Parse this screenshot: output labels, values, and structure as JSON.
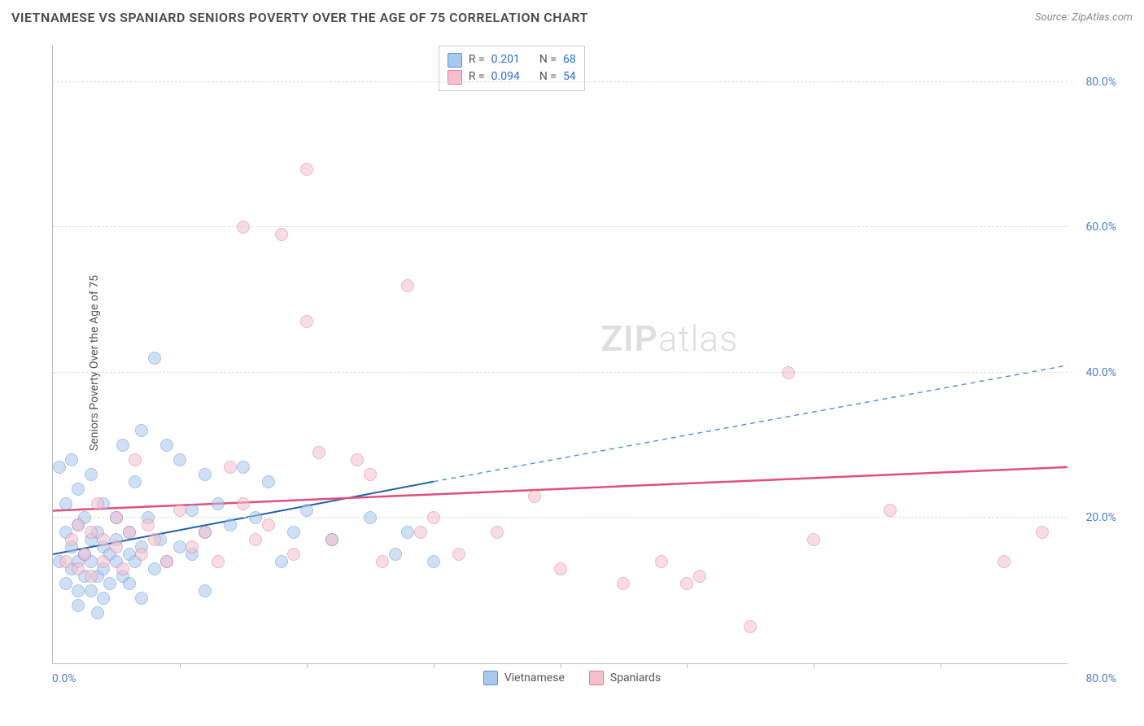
{
  "title": "VIETNAMESE VS SPANIARD SENIORS POVERTY OVER THE AGE OF 75 CORRELATION CHART",
  "source": "Source: ZipAtlas.com",
  "y_axis_label": "Seniors Poverty Over the Age of 75",
  "watermark": {
    "part1": "ZIP",
    "part2": "atlas"
  },
  "chart": {
    "type": "scatter",
    "xlim": [
      0,
      80
    ],
    "ylim": [
      0,
      85
    ],
    "x_tick_step": 10,
    "x_start_label": "0.0%",
    "x_end_label": "80.0%",
    "y_ticks": [
      20,
      40,
      60,
      80
    ],
    "y_tick_labels": [
      "20.0%",
      "40.0%",
      "60.0%",
      "80.0%"
    ],
    "background_color": "#ffffff",
    "grid_color": "#dddddd",
    "axis_color": "#bbbbbb",
    "tick_label_color": "#4a7fd6",
    "marker_radius": 8,
    "marker_opacity": 0.55,
    "series": [
      {
        "name": "Vietnamese",
        "fill": "#a8c8ee",
        "stroke": "#5e94d6",
        "R": "0.201",
        "N": "68",
        "trend": {
          "x1": 0,
          "y1": 15,
          "x2": 30,
          "y2": 25,
          "extend_x2": 80,
          "extend_y2": 41,
          "solid_color": "#1f5fb0",
          "dash_color": "#5e94d6",
          "width": 2
        },
        "points": [
          [
            0.5,
            14
          ],
          [
            0.5,
            27
          ],
          [
            1,
            18
          ],
          [
            1,
            11
          ],
          [
            1,
            22
          ],
          [
            1.5,
            28
          ],
          [
            1.5,
            16
          ],
          [
            1.5,
            13
          ],
          [
            2,
            10
          ],
          [
            2,
            14
          ],
          [
            2,
            19
          ],
          [
            2,
            24
          ],
          [
            2,
            8
          ],
          [
            2.5,
            15
          ],
          [
            2.5,
            12
          ],
          [
            2.5,
            20
          ],
          [
            3,
            26
          ],
          [
            3,
            17
          ],
          [
            3,
            10
          ],
          [
            3,
            14
          ],
          [
            3.5,
            7
          ],
          [
            3.5,
            12
          ],
          [
            3.5,
            18
          ],
          [
            4,
            16
          ],
          [
            4,
            22
          ],
          [
            4,
            13
          ],
          [
            4,
            9
          ],
          [
            4.5,
            15
          ],
          [
            4.5,
            11
          ],
          [
            5,
            20
          ],
          [
            5,
            14
          ],
          [
            5,
            17
          ],
          [
            5.5,
            30
          ],
          [
            5.5,
            12
          ],
          [
            6,
            18
          ],
          [
            6,
            15
          ],
          [
            6,
            11
          ],
          [
            6.5,
            25
          ],
          [
            6.5,
            14
          ],
          [
            7,
            32
          ],
          [
            7,
            16
          ],
          [
            7,
            9
          ],
          [
            7.5,
            20
          ],
          [
            8,
            13
          ],
          [
            8,
            42
          ],
          [
            8.5,
            17
          ],
          [
            9,
            30
          ],
          [
            9,
            14
          ],
          [
            10,
            28
          ],
          [
            10,
            16
          ],
          [
            11,
            21
          ],
          [
            11,
            15
          ],
          [
            12,
            26
          ],
          [
            12,
            18
          ],
          [
            12,
            10
          ],
          [
            13,
            22
          ],
          [
            14,
            19
          ],
          [
            15,
            27
          ],
          [
            16,
            20
          ],
          [
            17,
            25
          ],
          [
            18,
            14
          ],
          [
            19,
            18
          ],
          [
            20,
            21
          ],
          [
            22,
            17
          ],
          [
            25,
            20
          ],
          [
            27,
            15
          ],
          [
            28,
            18
          ],
          [
            30,
            14
          ]
        ]
      },
      {
        "name": "Spaniards",
        "fill": "#f4c0ce",
        "stroke": "#e77a9a",
        "R": "0.094",
        "N": "54",
        "trend": {
          "x1": 0,
          "y1": 21,
          "x2": 80,
          "y2": 27,
          "solid_color": "#e04f7b",
          "width": 2.5
        },
        "points": [
          [
            1,
            14
          ],
          [
            1.5,
            17
          ],
          [
            2,
            13
          ],
          [
            2,
            19
          ],
          [
            2.5,
            15
          ],
          [
            3,
            12
          ],
          [
            3,
            18
          ],
          [
            3.5,
            22
          ],
          [
            4,
            14
          ],
          [
            4,
            17
          ],
          [
            5,
            16
          ],
          [
            5,
            20
          ],
          [
            5.5,
            13
          ],
          [
            6,
            18
          ],
          [
            6.5,
            28
          ],
          [
            7,
            15
          ],
          [
            7.5,
            19
          ],
          [
            8,
            17
          ],
          [
            9,
            14
          ],
          [
            10,
            21
          ],
          [
            11,
            16
          ],
          [
            12,
            18
          ],
          [
            13,
            14
          ],
          [
            14,
            27
          ],
          [
            15,
            22
          ],
          [
            15,
            60
          ],
          [
            16,
            17
          ],
          [
            17,
            19
          ],
          [
            18,
            59
          ],
          [
            19,
            15
          ],
          [
            20,
            47
          ],
          [
            20,
            68
          ],
          [
            21,
            29
          ],
          [
            22,
            17
          ],
          [
            24,
            28
          ],
          [
            25,
            26
          ],
          [
            26,
            14
          ],
          [
            28,
            52
          ],
          [
            29,
            18
          ],
          [
            30,
            20
          ],
          [
            32,
            15
          ],
          [
            35,
            18
          ],
          [
            38,
            23
          ],
          [
            40,
            13
          ],
          [
            45,
            11
          ],
          [
            48,
            14
          ],
          [
            50,
            11
          ],
          [
            51,
            12
          ],
          [
            55,
            5
          ],
          [
            58,
            40
          ],
          [
            60,
            17
          ],
          [
            66,
            21
          ],
          [
            75,
            14
          ],
          [
            78,
            18
          ]
        ]
      }
    ]
  },
  "corr_legend": {
    "r_label": "R =",
    "n_label": "N ="
  },
  "series_legend_labels": [
    "Vietnamese",
    "Spaniards"
  ]
}
